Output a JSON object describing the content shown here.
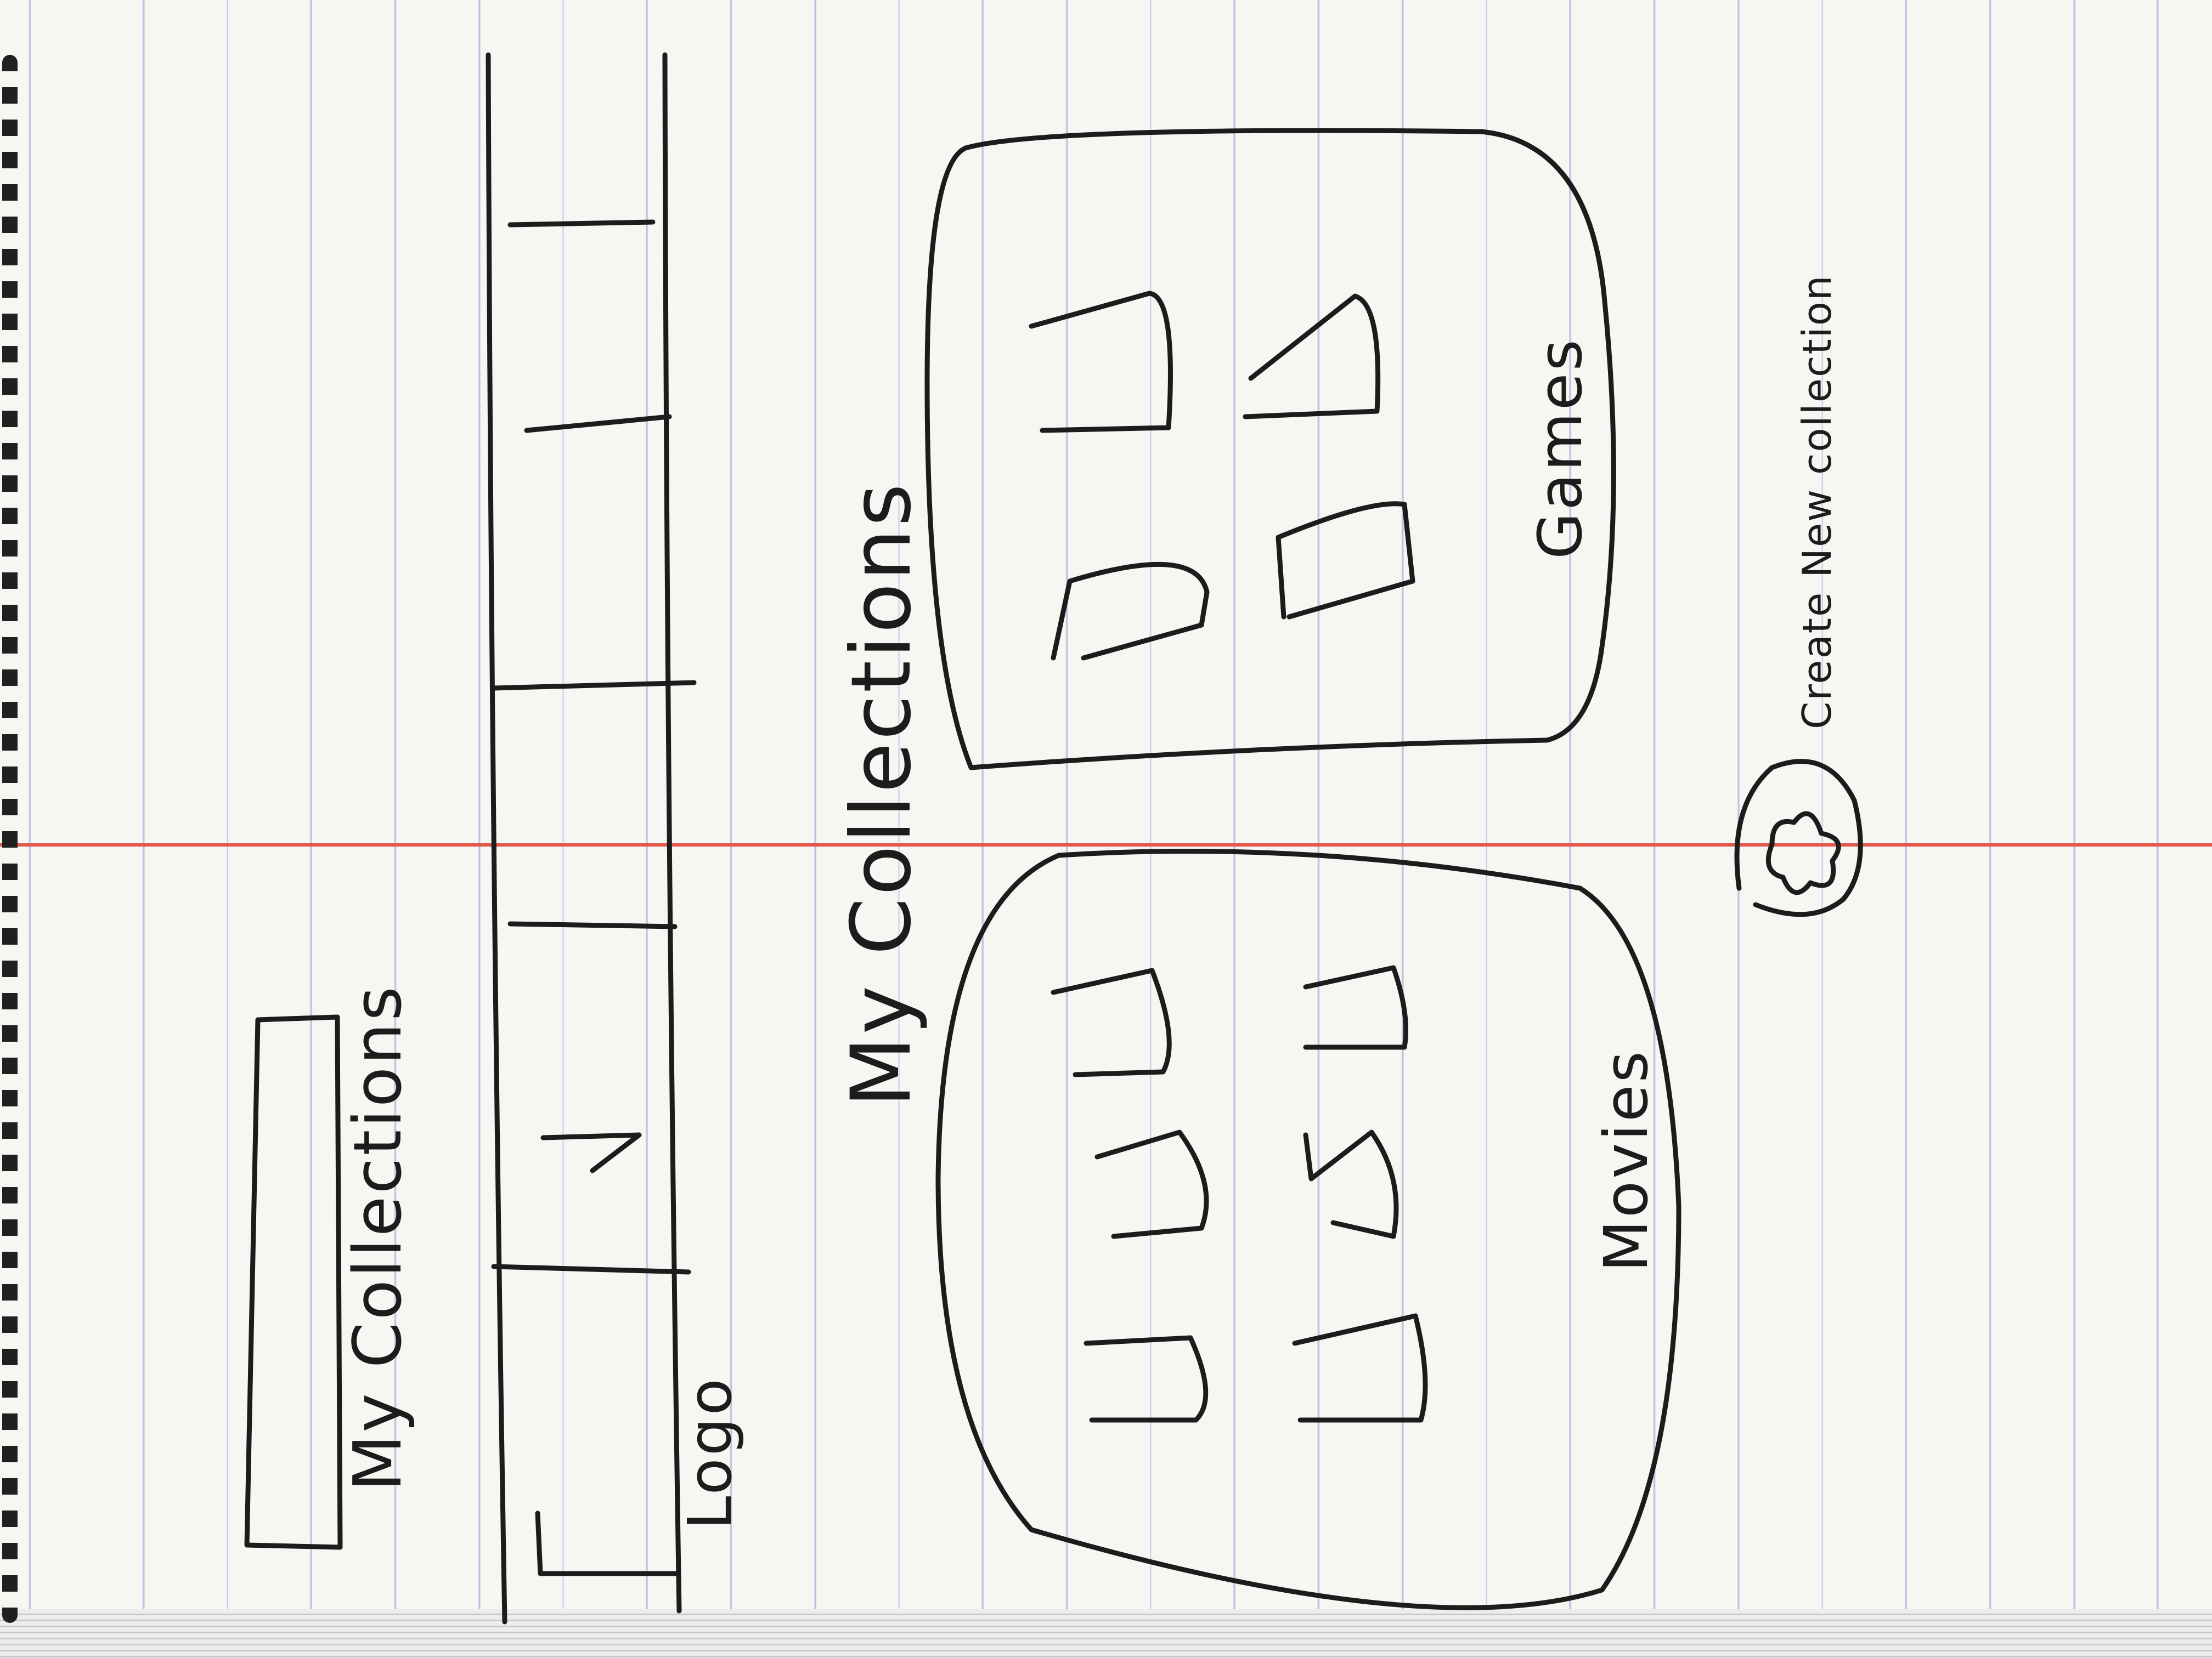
{
  "header": {
    "title_label": "My Collections",
    "logo_label": "Logo",
    "nav_tab_count": 5
  },
  "main": {
    "heading": "My Collections",
    "collections": [
      {
        "label": "Movies",
        "thumbnail_count": 6
      },
      {
        "label": "Games",
        "thumbnail_count": 4
      }
    ],
    "create_button_label": "Create New collection",
    "create_button_icon": "plus-icon"
  },
  "colors": {
    "ink": "#1c1c1c",
    "paper": "#f6f6f3",
    "rule_line": "#b9c3e6",
    "margin_line": "#e2574c"
  }
}
